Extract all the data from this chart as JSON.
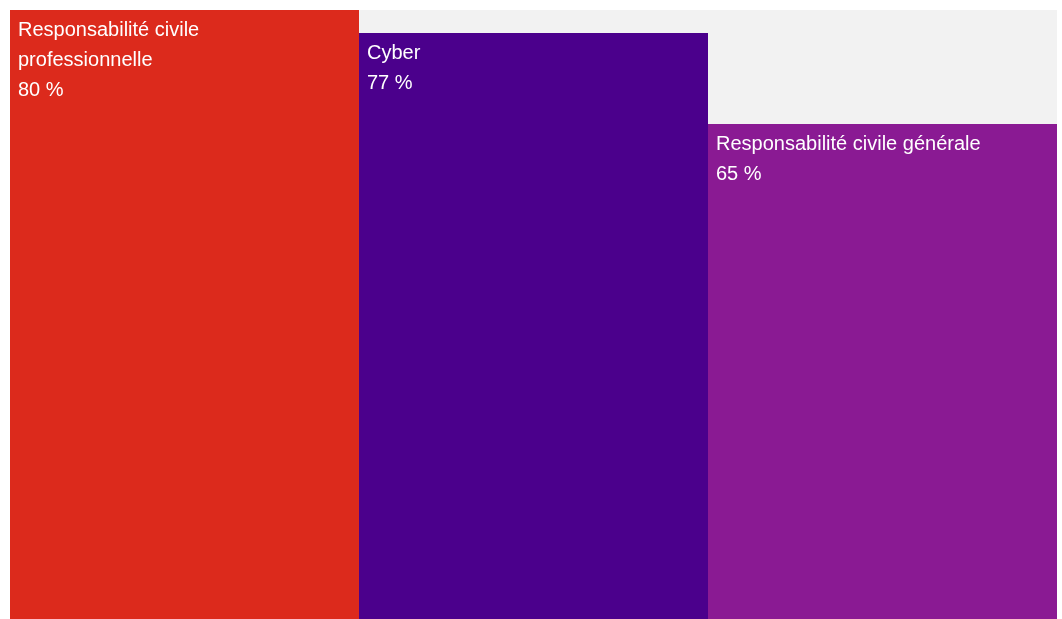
{
  "chart_data": {
    "type": "bar",
    "categories": [
      "Responsabilité civile professionnelle",
      "Cyber",
      "Responsabilité civile générale"
    ],
    "values": [
      80,
      77,
      65
    ],
    "colors": [
      "#dc2a1c",
      "#4b008c",
      "#8a1a93"
    ],
    "value_labels": [
      "80 %",
      "77 %",
      "65 %"
    ],
    "ylim": [
      0,
      80
    ],
    "tick_labels": false,
    "grid": false
  }
}
